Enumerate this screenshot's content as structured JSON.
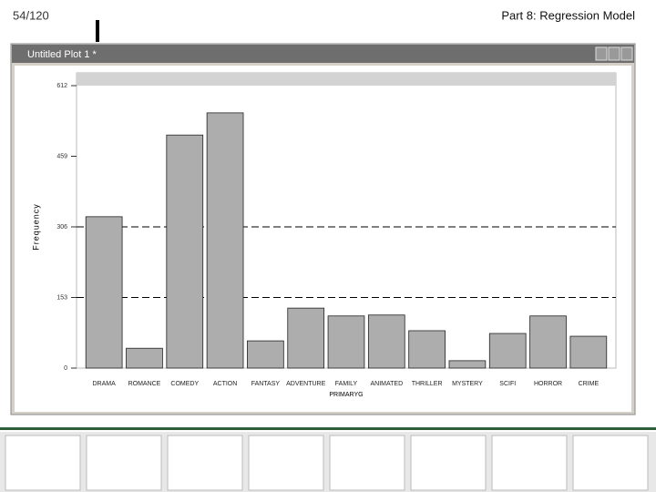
{
  "header": {
    "page": "54/120",
    "title": "Part 8: Regression Model"
  },
  "window": {
    "title": "Untitled Plot 1 *"
  },
  "chart_data": {
    "type": "bar",
    "x_label": "PRIMARYG",
    "y_label": "Frequency",
    "categories": [
      "DRAMA",
      "ROMANCE",
      "COMEDY",
      "ACTION",
      "FANTASY",
      "ADVENTURE",
      "FAMILY",
      "ANIMATED",
      "THRILLER",
      "MYSTERY",
      "SCIFI",
      "HORROR",
      "CRIME"
    ],
    "values": [
      328,
      43,
      505,
      553,
      59,
      130,
      113,
      115,
      81,
      16,
      75,
      113,
      69
    ],
    "color": "#adadad",
    "ylim": [
      0,
      612
    ],
    "yticks": [
      0,
      153,
      306,
      459,
      612
    ],
    "ref_lines": [
      153,
      306
    ]
  }
}
